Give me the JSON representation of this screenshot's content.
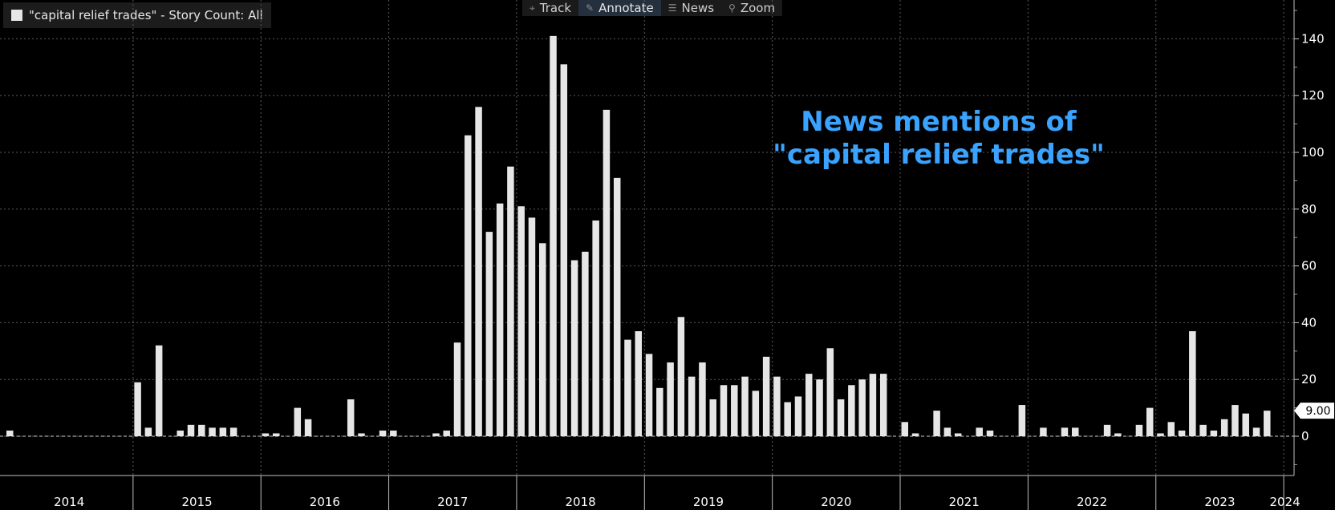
{
  "legend": {
    "label": "\"capital relief trades\" - Story Count: All",
    "swatch_color": "#e6e6e6"
  },
  "toolbar": {
    "track": "Track",
    "track_icon": "crosshair-icon",
    "annotate": "Annotate",
    "annotate_icon": "pencil-icon",
    "news": "News",
    "news_icon": "news-icon",
    "zoom": "Zoom",
    "zoom_icon": "magnifier-icon"
  },
  "chart_data": {
    "type": "bar",
    "title": [
      "News mentions of",
      "\"capital relief trades\""
    ],
    "series": [
      {
        "name": "\"capital relief trades\" - Story Count: All",
        "color": "#e6e6e6"
      }
    ],
    "frequency": "monthly",
    "start": "2014-01",
    "values": [
      2,
      0,
      0,
      0,
      0,
      0,
      0,
      0,
      0,
      0,
      0,
      0,
      19,
      3,
      32,
      0,
      2,
      4,
      4,
      3,
      3,
      3,
      0,
      0,
      1,
      1,
      0,
      10,
      6,
      0,
      0,
      0,
      13,
      1,
      0,
      2,
      2,
      0,
      0,
      0,
      1,
      2,
      33,
      106,
      116,
      72,
      82,
      95,
      81,
      77,
      68,
      141,
      131,
      62,
      65,
      76,
      115,
      91,
      34,
      37,
      29,
      17,
      26,
      42,
      21,
      26,
      13,
      18,
      18,
      21,
      16,
      28,
      21,
      12,
      14,
      22,
      20,
      31,
      13,
      18,
      20,
      22,
      22,
      0,
      5,
      1,
      0,
      9,
      3,
      1,
      0,
      3,
      2,
      0,
      0,
      11,
      0,
      3,
      0,
      3,
      3,
      0,
      0,
      4,
      1,
      0,
      4,
      10,
      1,
      5,
      2,
      37,
      4,
      2,
      6,
      11,
      8,
      3,
      9
    ],
    "last_value_label": "9.00",
    "y_ticks": [
      0,
      20,
      40,
      60,
      80,
      100,
      120,
      140
    ],
    "ylim": [
      -12,
      152
    ],
    "x_labels": [
      "2014",
      "2015",
      "2016",
      "2017",
      "2018",
      "2019",
      "2020",
      "2021",
      "2022",
      "2023",
      "2024"
    ],
    "grid": true
  }
}
